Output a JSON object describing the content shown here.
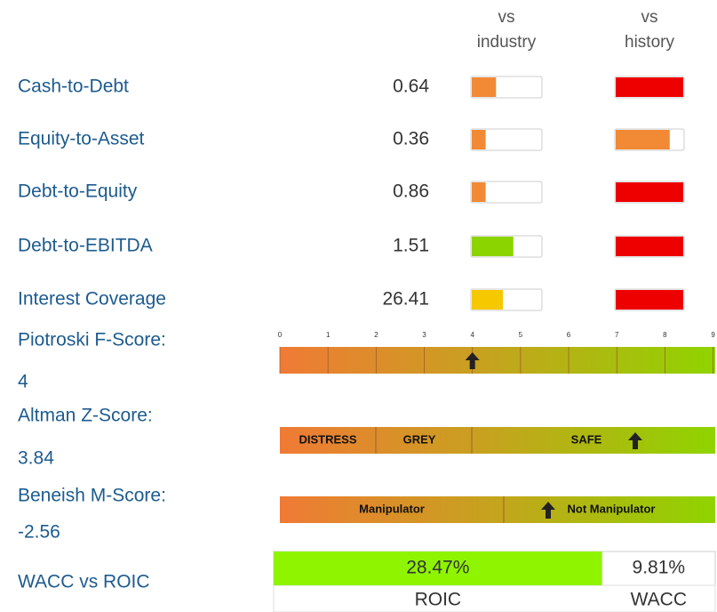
{
  "header": {
    "industry": [
      "vs",
      "industry"
    ],
    "history": [
      "vs",
      "history"
    ]
  },
  "rows": [
    {
      "label": "Cash-to-Debt",
      "value": "0.64",
      "industry": {
        "fill": 0.35,
        "color": "#f28a35"
      },
      "history": {
        "fill": 1.0,
        "color": "#ee0000"
      }
    },
    {
      "label": "Equity-to-Asset",
      "value": "0.36",
      "industry": {
        "fill": 0.2,
        "color": "#f28a35"
      },
      "history": {
        "fill": 0.8,
        "color": "#f28a35"
      }
    },
    {
      "label": "Debt-to-Equity",
      "value": "0.86",
      "industry": {
        "fill": 0.2,
        "color": "#f28a35"
      },
      "history": {
        "fill": 1.0,
        "color": "#ee0000"
      }
    },
    {
      "label": "Debt-to-EBITDA",
      "value": "1.51",
      "industry": {
        "fill": 0.6,
        "color": "#8cd400"
      },
      "history": {
        "fill": 1.0,
        "color": "#ee0000"
      }
    },
    {
      "label": "Interest Coverage",
      "value": "26.41",
      "industry": {
        "fill": 0.45,
        "color": "#f5c800"
      },
      "history": {
        "fill": 1.0,
        "color": "#ee0000"
      }
    }
  ],
  "piotroski": {
    "label": "Piotroski F-Score:",
    "value": 4,
    "ticks": [
      0,
      1,
      2,
      3,
      4,
      5,
      6,
      7,
      8,
      9
    ]
  },
  "altman": {
    "label": "Altman Z-Score:",
    "value": "3.84",
    "zones": [
      "DISTRESS",
      "GREY",
      "SAFE"
    ]
  },
  "beneish": {
    "label": "Beneish M-Score:",
    "value": "-2.56",
    "zones": [
      "Manipulator",
      "Not Manipulator"
    ]
  },
  "wacc_roic": {
    "label": "WACC vs ROIC",
    "roic": {
      "value": 28.47,
      "label": "28.47%",
      "name": "ROIC"
    },
    "wacc": {
      "value": 9.81,
      "label": "9.81%",
      "name": "WACC"
    }
  }
}
